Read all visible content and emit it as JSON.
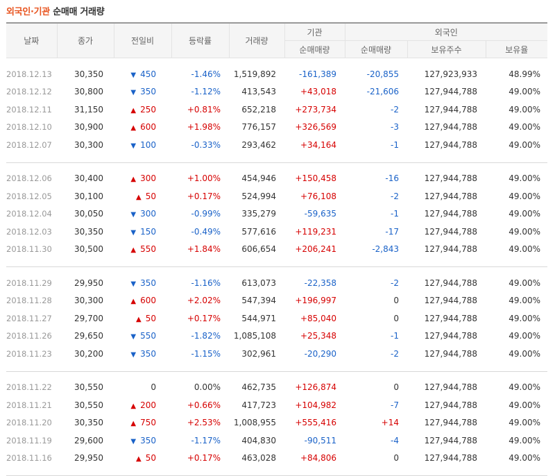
{
  "title": {
    "part1": "외국인·기관",
    "part2": "순매매 거래량"
  },
  "headers": {
    "date": "날짜",
    "close": "종가",
    "change": "전일비",
    "rate": "등락률",
    "volume": "거래량",
    "inst_group": "기관",
    "inst_net": "순매매량",
    "foreign_group": "외국인",
    "foreign_net": "순매매량",
    "foreign_hold": "보유주수",
    "foreign_ratio": "보유율"
  },
  "groups": [
    [
      {
        "date": "2018.12.13",
        "close": "30,350",
        "dir": "down",
        "change": "450",
        "rate": "-1.46%",
        "volume": "1,519,892",
        "inst": "-161,389",
        "fnet": "-20,855",
        "hold": "127,923,933",
        "ratio": "48.99%"
      },
      {
        "date": "2018.12.12",
        "close": "30,800",
        "dir": "down",
        "change": "350",
        "rate": "-1.12%",
        "volume": "413,543",
        "inst": "+43,018",
        "fnet": "-21,606",
        "hold": "127,944,788",
        "ratio": "49.00%"
      },
      {
        "date": "2018.12.11",
        "close": "31,150",
        "dir": "up",
        "change": "250",
        "rate": "+0.81%",
        "volume": "652,218",
        "inst": "+273,734",
        "fnet": "-2",
        "hold": "127,944,788",
        "ratio": "49.00%"
      },
      {
        "date": "2018.12.10",
        "close": "30,900",
        "dir": "up",
        "change": "600",
        "rate": "+1.98%",
        "volume": "776,157",
        "inst": "+326,569",
        "fnet": "-3",
        "hold": "127,944,788",
        "ratio": "49.00%"
      },
      {
        "date": "2018.12.07",
        "close": "30,300",
        "dir": "down",
        "change": "100",
        "rate": "-0.33%",
        "volume": "293,462",
        "inst": "+34,164",
        "fnet": "-1",
        "hold": "127,944,788",
        "ratio": "49.00%"
      }
    ],
    [
      {
        "date": "2018.12.06",
        "close": "30,400",
        "dir": "up",
        "change": "300",
        "rate": "+1.00%",
        "volume": "454,946",
        "inst": "+150,458",
        "fnet": "-16",
        "hold": "127,944,788",
        "ratio": "49.00%"
      },
      {
        "date": "2018.12.05",
        "close": "30,100",
        "dir": "up",
        "change": "50",
        "rate": "+0.17%",
        "volume": "524,994",
        "inst": "+76,108",
        "fnet": "-2",
        "hold": "127,944,788",
        "ratio": "49.00%"
      },
      {
        "date": "2018.12.04",
        "close": "30,050",
        "dir": "down",
        "change": "300",
        "rate": "-0.99%",
        "volume": "335,279",
        "inst": "-59,635",
        "fnet": "-1",
        "hold": "127,944,788",
        "ratio": "49.00%"
      },
      {
        "date": "2018.12.03",
        "close": "30,350",
        "dir": "down",
        "change": "150",
        "rate": "-0.49%",
        "volume": "577,616",
        "inst": "+119,231",
        "fnet": "-17",
        "hold": "127,944,788",
        "ratio": "49.00%"
      },
      {
        "date": "2018.11.30",
        "close": "30,500",
        "dir": "up",
        "change": "550",
        "rate": "+1.84%",
        "volume": "606,654",
        "inst": "+206,241",
        "fnet": "-2,843",
        "hold": "127,944,788",
        "ratio": "49.00%"
      }
    ],
    [
      {
        "date": "2018.11.29",
        "close": "29,950",
        "dir": "down",
        "change": "350",
        "rate": "-1.16%",
        "volume": "613,073",
        "inst": "-22,358",
        "fnet": "-2",
        "hold": "127,944,788",
        "ratio": "49.00%"
      },
      {
        "date": "2018.11.28",
        "close": "30,300",
        "dir": "up",
        "change": "600",
        "rate": "+2.02%",
        "volume": "547,394",
        "inst": "+196,997",
        "fnet": "0",
        "hold": "127,944,788",
        "ratio": "49.00%"
      },
      {
        "date": "2018.11.27",
        "close": "29,700",
        "dir": "up",
        "change": "50",
        "rate": "+0.17%",
        "volume": "544,971",
        "inst": "+85,040",
        "fnet": "0",
        "hold": "127,944,788",
        "ratio": "49.00%"
      },
      {
        "date": "2018.11.26",
        "close": "29,650",
        "dir": "down",
        "change": "550",
        "rate": "-1.82%",
        "volume": "1,085,108",
        "inst": "+25,348",
        "fnet": "-1",
        "hold": "127,944,788",
        "ratio": "49.00%"
      },
      {
        "date": "2018.11.23",
        "close": "30,200",
        "dir": "down",
        "change": "350",
        "rate": "-1.15%",
        "volume": "302,961",
        "inst": "-20,290",
        "fnet": "-2",
        "hold": "127,944,788",
        "ratio": "49.00%"
      }
    ],
    [
      {
        "date": "2018.11.22",
        "close": "30,550",
        "dir": "flat",
        "change": "0",
        "rate": "0.00%",
        "volume": "462,735",
        "inst": "+126,874",
        "fnet": "0",
        "hold": "127,944,788",
        "ratio": "49.00%"
      },
      {
        "date": "2018.11.21",
        "close": "30,550",
        "dir": "up",
        "change": "200",
        "rate": "+0.66%",
        "volume": "417,723",
        "inst": "+104,982",
        "fnet": "-7",
        "hold": "127,944,788",
        "ratio": "49.00%"
      },
      {
        "date": "2018.11.20",
        "close": "30,350",
        "dir": "up",
        "change": "750",
        "rate": "+2.53%",
        "volume": "1,008,955",
        "inst": "+555,416",
        "fnet": "+14",
        "hold": "127,944,788",
        "ratio": "49.00%"
      },
      {
        "date": "2018.11.19",
        "close": "29,600",
        "dir": "down",
        "change": "350",
        "rate": "-1.17%",
        "volume": "404,830",
        "inst": "-90,511",
        "fnet": "-4",
        "hold": "127,944,788",
        "ratio": "49.00%"
      },
      {
        "date": "2018.11.16",
        "close": "29,950",
        "dir": "up",
        "change": "50",
        "rate": "+0.17%",
        "volume": "463,028",
        "inst": "+84,806",
        "fnet": "0",
        "hold": "127,944,788",
        "ratio": "49.00%"
      }
    ]
  ],
  "colors": {
    "up": "#d60000",
    "down": "#1a62c8",
    "title_accent": "#e8541f"
  },
  "icons": {
    "up": "triangle-up-icon",
    "down": "triangle-down-icon"
  }
}
